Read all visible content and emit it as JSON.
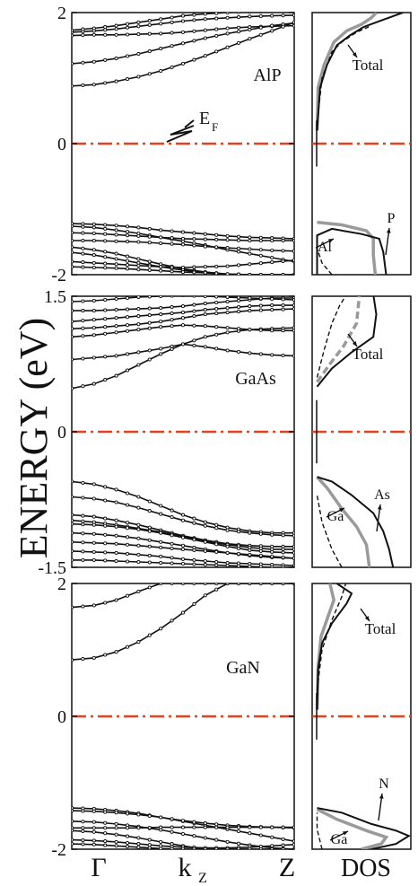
{
  "colors": {
    "curve": "#111111",
    "fermi": "#e8401c",
    "frame": "#111111",
    "gray": "#9a9a9a"
  },
  "figure": {
    "ylabel": "ENERGY (eV)",
    "x_ticks": {
      "gamma": "Γ",
      "kz_main": "k",
      "kz_sub": "Z",
      "z": "Z"
    },
    "dos_xlabel": "DOS",
    "ef_main": "E",
    "ef_sub": "F"
  },
  "chart_data": [
    {
      "type": "line",
      "material": "AlP",
      "title": "AlP",
      "ylim": [
        -2,
        2
      ],
      "yticks": [
        "-2",
        "0",
        "2"
      ],
      "x": [
        0,
        0.1,
        0.2,
        0.3,
        0.4,
        0.5,
        0.6,
        0.7,
        0.8,
        0.9,
        1.0
      ],
      "series": [
        {
          "values": [
            1.7,
            1.72,
            1.75,
            1.79,
            1.83,
            1.87,
            1.9,
            1.92,
            1.94,
            1.95,
            1.96
          ]
        },
        {
          "values": [
            1.73,
            1.76,
            1.8,
            1.85,
            1.9,
            1.95,
            1.98,
            2.0,
            2.01,
            2.02,
            2.02
          ]
        },
        {
          "values": [
            1.65,
            1.66,
            1.66,
            1.67,
            1.68,
            1.7,
            1.73,
            1.76,
            1.78,
            1.79,
            1.8
          ]
        },
        {
          "values": [
            1.22,
            1.25,
            1.3,
            1.37,
            1.45,
            1.53,
            1.61,
            1.68,
            1.74,
            1.8,
            1.84
          ]
        },
        {
          "values": [
            0.88,
            0.9,
            0.95,
            1.02,
            1.11,
            1.22,
            1.34,
            1.47,
            1.6,
            1.72,
            1.85
          ]
        },
        {
          "values": [
            -1.22,
            -1.23,
            -1.25,
            -1.28,
            -1.32,
            -1.35,
            -1.38,
            -1.41,
            -1.43,
            -1.44,
            -1.45
          ]
        },
        {
          "values": [
            -1.26,
            -1.28,
            -1.32,
            -1.37,
            -1.43,
            -1.49,
            -1.55,
            -1.62,
            -1.68,
            -1.74,
            -1.8
          ]
        },
        {
          "values": [
            -1.36,
            -1.37,
            -1.39,
            -1.41,
            -1.43,
            -1.45,
            -1.46,
            -1.47,
            -1.48,
            -1.48,
            -1.48
          ]
        },
        {
          "values": [
            -1.48,
            -1.48,
            -1.49,
            -1.5,
            -1.52,
            -1.54,
            -1.57,
            -1.59,
            -1.61,
            -1.63,
            -1.64
          ]
        },
        {
          "values": [
            -1.58,
            -1.62,
            -1.68,
            -1.76,
            -1.84,
            -1.91,
            -1.96,
            -1.99,
            -2.0,
            -2.0,
            -2.0
          ]
        },
        {
          "values": [
            -1.66,
            -1.7,
            -1.76,
            -1.82,
            -1.88,
            -1.93,
            -1.97,
            -2.0,
            -2.0,
            -2.0,
            -2.0
          ]
        },
        {
          "values": [
            -1.8,
            -1.82,
            -1.84,
            -1.86,
            -1.88,
            -1.89,
            -1.88,
            -1.87,
            -1.84,
            -1.81,
            -1.78
          ]
        },
        {
          "values": [
            -1.88,
            -1.89,
            -1.9,
            -1.92,
            -1.94,
            -1.96,
            -1.97,
            -1.99,
            -2.0,
            -2.0,
            -2.0
          ]
        }
      ],
      "dos": {
        "labels": {
          "total": "Total",
          "a": "Al",
          "b": "P"
        },
        "total": [
          [
            0.05,
            -2.0
          ],
          [
            0.05,
            -1.4
          ],
          [
            0.2,
            -1.3
          ],
          [
            0.5,
            -1.38
          ],
          [
            0.68,
            -1.45
          ],
          [
            0.72,
            -1.65
          ],
          [
            0.75,
            -2.0
          ]
        ],
        "a": [
          [
            0.2,
            -2.0
          ],
          [
            0.1,
            -1.82
          ],
          [
            0.05,
            -1.6
          ]
        ],
        "b": [
          [
            0.05,
            -1.2
          ],
          [
            0.3,
            -1.24
          ],
          [
            0.55,
            -1.33
          ],
          [
            0.62,
            -1.45
          ],
          [
            0.62,
            -1.7
          ],
          [
            0.64,
            -2.0
          ]
        ],
        "total_cb": [
          [
            0.05,
            0.2
          ],
          [
            0.08,
            0.85
          ],
          [
            0.15,
            1.2
          ],
          [
            0.25,
            1.5
          ],
          [
            0.38,
            1.65
          ],
          [
            0.52,
            1.78
          ],
          [
            0.7,
            1.88
          ],
          [
            0.92,
            2.0
          ]
        ],
        "gray_cb": [
          [
            0.05,
            0.2
          ],
          [
            0.06,
            0.85
          ],
          [
            0.12,
            1.2
          ],
          [
            0.22,
            1.55
          ],
          [
            0.35,
            1.72
          ],
          [
            0.5,
            1.82
          ],
          [
            0.6,
            1.92
          ],
          [
            0.65,
            2.0
          ]
        ],
        "dash_cb": [
          [
            0.05,
            0.3
          ],
          [
            0.1,
            1.0
          ],
          [
            0.2,
            1.4
          ],
          [
            0.3,
            1.55
          ],
          [
            0.45,
            1.7
          ],
          [
            0.6,
            1.8
          ]
        ]
      }
    },
    {
      "type": "line",
      "material": "GaAs",
      "title": "GaAs",
      "ylim": [
        -1.5,
        1.5
      ],
      "yticks": [
        "-1.5",
        "0",
        "1.5"
      ],
      "x": [
        0,
        0.1,
        0.2,
        0.3,
        0.4,
        0.5,
        0.6,
        0.7,
        0.8,
        0.9,
        1.0
      ],
      "series": [
        {
          "values": [
            0.48,
            0.53,
            0.62,
            0.74,
            0.86,
            0.97,
            1.05,
            1.1,
            1.13,
            1.14,
            1.15
          ]
        },
        {
          "values": [
            0.8,
            0.82,
            0.84,
            0.88,
            0.92,
            0.97,
            0.94,
            0.9,
            0.87,
            0.85,
            0.84
          ]
        },
        {
          "values": [
            1.05,
            1.07,
            1.1,
            1.13,
            1.16,
            1.18,
            1.17,
            1.15,
            1.13,
            1.12,
            1.12
          ]
        },
        {
          "values": [
            1.14,
            1.15,
            1.17,
            1.19,
            1.22,
            1.26,
            1.3,
            1.32,
            1.34,
            1.35,
            1.36
          ]
        },
        {
          "values": [
            1.22,
            1.24,
            1.26,
            1.28,
            1.3,
            1.32,
            1.35,
            1.37,
            1.39,
            1.4,
            1.4
          ]
        },
        {
          "values": [
            1.34,
            1.34,
            1.35,
            1.36,
            1.37,
            1.39,
            1.42,
            1.44,
            1.46,
            1.48,
            1.48
          ]
        },
        {
          "values": [
            1.44,
            1.45,
            1.47,
            1.49,
            1.5,
            1.51,
            1.5,
            1.49,
            1.48,
            1.47,
            1.46
          ]
        },
        {
          "values": [
            1.52,
            1.53,
            1.54,
            1.55,
            1.56,
            1.56,
            1.56,
            1.56,
            1.55,
            1.55,
            1.55
          ]
        },
        {
          "values": [
            -0.55,
            -0.58,
            -0.64,
            -0.72,
            -0.82,
            -0.92,
            -1.0,
            -1.06,
            -1.1,
            -1.12,
            -1.12
          ]
        },
        {
          "values": [
            -0.72,
            -0.74,
            -0.78,
            -0.84,
            -0.91,
            -0.98,
            -1.04,
            -1.09,
            -1.12,
            -1.14,
            -1.15
          ]
        },
        {
          "values": [
            -0.92,
            -0.94,
            -0.98,
            -1.03,
            -1.09,
            -1.15,
            -1.2,
            -1.24,
            -1.26,
            -1.27,
            -1.27
          ]
        },
        {
          "values": [
            -0.98,
            -1.0,
            -1.03,
            -1.07,
            -1.11,
            -1.16,
            -1.21,
            -1.25,
            -1.28,
            -1.3,
            -1.3
          ]
        },
        {
          "values": [
            -1.02,
            -1.03,
            -1.05,
            -1.08,
            -1.12,
            -1.17,
            -1.22,
            -1.27,
            -1.31,
            -1.33,
            -1.34
          ]
        },
        {
          "values": [
            -1.12,
            -1.13,
            -1.15,
            -1.18,
            -1.22,
            -1.26,
            -1.3,
            -1.34,
            -1.37,
            -1.39,
            -1.4
          ]
        },
        {
          "values": [
            -1.22,
            -1.23,
            -1.24,
            -1.26,
            -1.28,
            -1.3,
            -1.32,
            -1.34,
            -1.36,
            -1.38,
            -1.4
          ]
        },
        {
          "values": [
            -1.32,
            -1.33,
            -1.34,
            -1.36,
            -1.38,
            -1.41,
            -1.43,
            -1.45,
            -1.46,
            -1.47,
            -1.48
          ]
        },
        {
          "values": [
            -1.42,
            -1.42,
            -1.43,
            -1.44,
            -1.45,
            -1.46,
            -1.47,
            -1.48,
            -1.49,
            -1.5,
            -1.5
          ]
        }
      ],
      "dos": {
        "labels": {
          "total": "Total",
          "a": "Ga",
          "b": "As"
        },
        "total": [
          [
            0.05,
            -0.5
          ],
          [
            0.2,
            -0.55
          ],
          [
            0.4,
            -0.7
          ],
          [
            0.62,
            -0.9
          ],
          [
            0.72,
            -1.1
          ],
          [
            0.78,
            -1.3
          ],
          [
            0.82,
            -1.5
          ]
        ],
        "a": [
          [
            0.3,
            -1.5
          ],
          [
            0.2,
            -1.3
          ],
          [
            0.1,
            -1.0
          ],
          [
            0.05,
            -0.7
          ]
        ],
        "b": [
          [
            0.05,
            -0.5
          ],
          [
            0.15,
            -0.62
          ],
          [
            0.3,
            -0.85
          ],
          [
            0.45,
            -1.05
          ],
          [
            0.55,
            -1.25
          ],
          [
            0.58,
            -1.5
          ]
        ],
        "total_cb": [
          [
            0.05,
            0.5
          ],
          [
            0.2,
            0.7
          ],
          [
            0.4,
            0.88
          ],
          [
            0.62,
            1.05
          ],
          [
            0.65,
            1.3
          ],
          [
            0.62,
            1.52
          ]
        ],
        "gray_cb": [
          [
            0.05,
            0.55
          ],
          [
            0.18,
            0.75
          ],
          [
            0.32,
            0.95
          ],
          [
            0.45,
            1.2
          ],
          [
            0.48,
            1.52
          ]
        ],
        "dash_cb": [
          [
            0.05,
            0.6
          ],
          [
            0.12,
            0.9
          ],
          [
            0.2,
            1.2
          ],
          [
            0.28,
            1.4
          ],
          [
            0.35,
            1.52
          ]
        ]
      }
    },
    {
      "type": "line",
      "material": "GaN",
      "title": "GaN",
      "ylim": [
        -2,
        2
      ],
      "yticks": [
        "-2",
        "0",
        "2"
      ],
      "x": [
        0,
        0.1,
        0.2,
        0.3,
        0.4,
        0.5,
        0.6,
        0.7,
        0.8,
        0.9,
        1.0
      ],
      "series": [
        {
          "values": [
            0.85,
            0.88,
            0.97,
            1.12,
            1.32,
            1.56,
            1.82,
            2.0,
            2.0,
            2.0,
            2.0
          ]
        },
        {
          "values": [
            1.64,
            1.67,
            1.75,
            1.88,
            2.0,
            2.0,
            2.0,
            2.0,
            2.0,
            2.0,
            2.0
          ]
        },
        {
          "values": [
            -1.38,
            -1.39,
            -1.42,
            -1.46,
            -1.52,
            -1.58,
            -1.64,
            -1.7,
            -1.76,
            -1.82,
            -1.88
          ]
        },
        {
          "values": [
            -1.42,
            -1.43,
            -1.45,
            -1.48,
            -1.52,
            -1.57,
            -1.61,
            -1.64,
            -1.66,
            -1.67,
            -1.68
          ]
        },
        {
          "values": [
            -1.58,
            -1.59,
            -1.62,
            -1.66,
            -1.71,
            -1.77,
            -1.83,
            -1.89,
            -1.94,
            -1.98,
            -2.0
          ]
        },
        {
          "values": [
            -1.68,
            -1.68,
            -1.68,
            -1.68,
            -1.67,
            -1.67,
            -1.67,
            -1.67,
            -1.67,
            -1.67,
            -1.67
          ]
        },
        {
          "values": [
            -1.72,
            -1.74,
            -1.78,
            -1.83,
            -1.89,
            -1.95,
            -2.0,
            -2.0,
            -2.0,
            -2.0,
            -2.0
          ]
        },
        {
          "values": [
            -1.86,
            -1.87,
            -1.89,
            -1.92,
            -1.95,
            -1.97,
            -1.98,
            -1.98,
            -1.97,
            -1.95,
            -1.93
          ]
        },
        {
          "values": [
            -1.92,
            -1.93,
            -1.95,
            -1.97,
            -1.99,
            -2.0,
            -2.0,
            -2.0,
            -2.0,
            -2.0,
            -2.0
          ]
        }
      ],
      "dos": {
        "labels": {
          "total": "Total",
          "a": "Ga",
          "b": "N"
        },
        "total": [
          [
            0.05,
            -1.38
          ],
          [
            0.3,
            -1.45
          ],
          [
            0.6,
            -1.62
          ],
          [
            0.85,
            -1.72
          ],
          [
            0.98,
            -1.8
          ],
          [
            0.85,
            -1.92
          ],
          [
            0.6,
            -2.0
          ]
        ],
        "a": [
          [
            0.1,
            -2.0
          ],
          [
            0.05,
            -1.7
          ],
          [
            0.05,
            -1.45
          ]
        ],
        "b": [
          [
            0.05,
            -1.4
          ],
          [
            0.25,
            -1.55
          ],
          [
            0.55,
            -1.72
          ],
          [
            0.75,
            -1.82
          ],
          [
            0.7,
            -1.92
          ],
          [
            0.5,
            -2.0
          ]
        ],
        "total_cb": [
          [
            0.05,
            0.1
          ],
          [
            0.06,
            0.7
          ],
          [
            0.1,
            1.1
          ],
          [
            0.2,
            1.4
          ],
          [
            0.35,
            1.7
          ],
          [
            0.4,
            1.85
          ],
          [
            0.25,
            2.0
          ]
        ],
        "gray_cb": [
          [
            0.05,
            0.1
          ],
          [
            0.06,
            0.75
          ],
          [
            0.09,
            1.2
          ],
          [
            0.16,
            1.5
          ],
          [
            0.22,
            1.75
          ],
          [
            0.18,
            2.0
          ]
        ],
        "dash_cb": [
          [
            0.05,
            0.4
          ],
          [
            0.1,
            1.0
          ],
          [
            0.2,
            1.45
          ],
          [
            0.3,
            1.8
          ],
          [
            0.34,
            2.0
          ]
        ]
      }
    }
  ]
}
